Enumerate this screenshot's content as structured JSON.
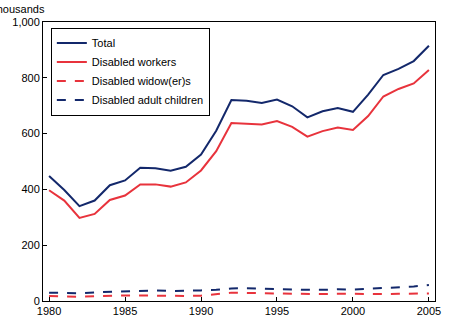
{
  "chart_data": {
    "type": "line",
    "y_label": "Thousands",
    "x": [
      1980,
      1981,
      1982,
      1983,
      1984,
      1985,
      1986,
      1987,
      1988,
      1989,
      1990,
      1991,
      1992,
      1993,
      1994,
      1995,
      1996,
      1997,
      1998,
      1999,
      2000,
      2001,
      2002,
      2003,
      2004,
      2005
    ],
    "series": [
      {
        "name": "Total",
        "color": "#13286b",
        "line_style": "solid",
        "values": [
          448,
          398,
          340,
          360,
          415,
          432,
          478,
          476,
          467,
          481,
          525,
          610,
          720,
          718,
          710,
          722,
          698,
          658,
          680,
          692,
          678,
          740,
          810,
          832,
          860,
          915
        ]
      },
      {
        "name": "Disabled workers",
        "color": "#e8333c",
        "line_style": "solid",
        "values": [
          397,
          360,
          298,
          312,
          362,
          378,
          418,
          418,
          410,
          425,
          468,
          537,
          638,
          636,
          633,
          645,
          624,
          589,
          609,
          622,
          613,
          663,
          733,
          760,
          780,
          828
        ]
      },
      {
        "name": "Disabled widow(er)s",
        "color": "#e8333c",
        "line_style": "dash",
        "values": [
          18,
          17,
          15,
          17,
          19,
          20,
          20,
          19,
          18,
          18,
          19,
          24,
          30,
          29,
          27,
          27,
          26,
          25,
          25,
          26,
          25,
          25,
          25,
          26,
          26,
          27
        ]
      },
      {
        "name": "Disabled adult children",
        "color": "#13286b",
        "line_style": "dash",
        "values": [
          30,
          30,
          28,
          31,
          33,
          35,
          38,
          38,
          36,
          36,
          38,
          40,
          45,
          46,
          44,
          44,
          42,
          40,
          40,
          42,
          41,
          44,
          47,
          48,
          52,
          57
        ]
      }
    ],
    "xlim": [
      1979.6,
      2005.4
    ],
    "xticks": [
      1980,
      1985,
      1990,
      1995,
      2000,
      2005
    ],
    "ylim": [
      0,
      1000
    ],
    "yticks": [
      0,
      200,
      400,
      600,
      800,
      {
        "value": 1000,
        "label": "1,000"
      }
    ],
    "grid": false,
    "legend": "top-left"
  }
}
